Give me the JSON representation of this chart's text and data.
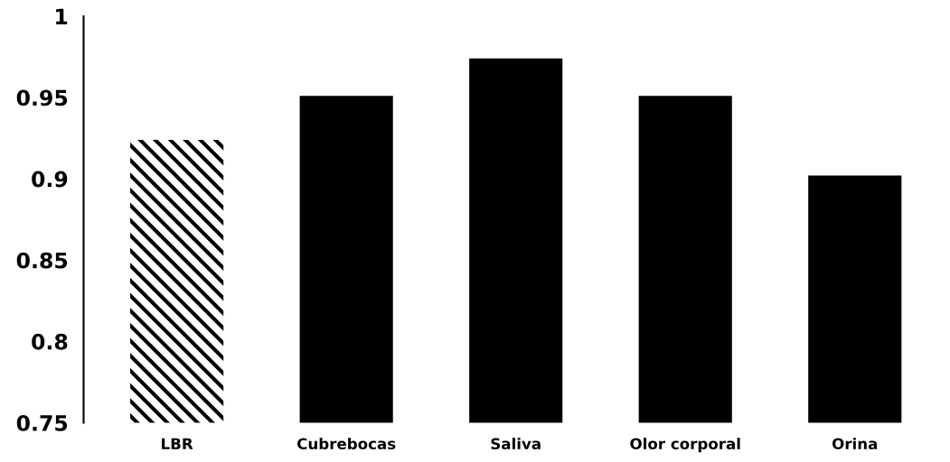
{
  "chart_data": {
    "type": "bar",
    "categories": [
      "LBR",
      "Cubrebocas",
      "Saliva",
      "Olor corporal",
      "Orina"
    ],
    "values": [
      0.924,
      0.951,
      0.974,
      0.951,
      0.902
    ],
    "colors": [
      "#ffffff",
      "#000000",
      "#000000",
      "#000000",
      "#000000"
    ],
    "ylim": [
      0.75,
      1
    ],
    "yticks": [
      0.75,
      0.8,
      0.85,
      0.9,
      0.95,
      1
    ],
    "grid": false,
    "legend": false
  }
}
